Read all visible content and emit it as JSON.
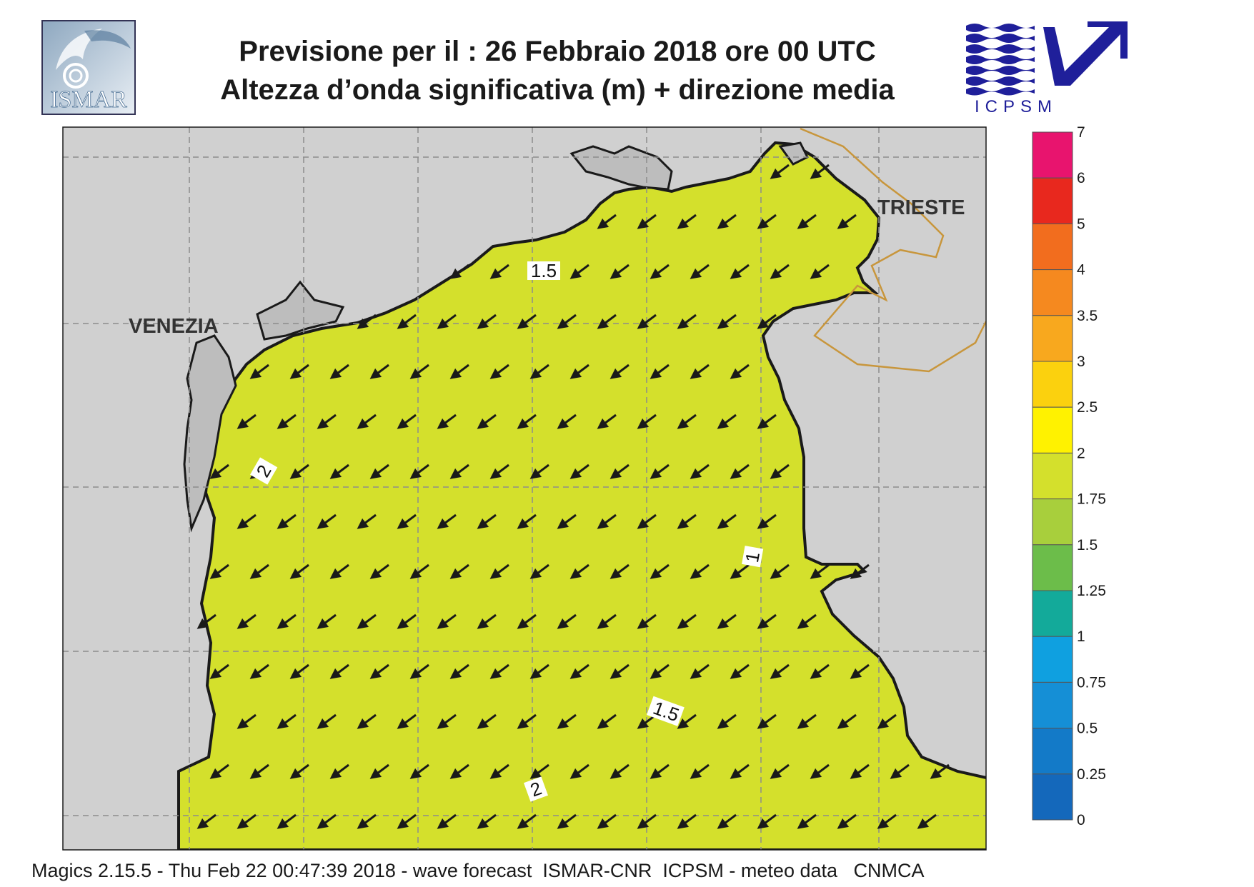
{
  "header": {
    "title_line1": "Previsione per il  :  26  Febbraio 2018   ore 00 UTC",
    "title_line2": "Altezza d’onda significativa (m) + direzione media"
  },
  "logos": {
    "left": {
      "text": "ISMAR",
      "color": "#4a6f94"
    },
    "right": {
      "text": "ICPSM",
      "color": "#1f1f9a"
    }
  },
  "map": {
    "cities": [
      "VENEZIA",
      "TRIESTE"
    ],
    "contour_labels": [
      "1.5",
      "2",
      "1",
      "1.5",
      "2"
    ],
    "land_color": "#d0d0d0",
    "coast_color": "#1a1a1a",
    "border_color": "#c8963c",
    "arrow_direction": "south-west"
  },
  "legend": {
    "labels": [
      "7",
      "6",
      "5",
      "4",
      "3.5",
      "3",
      "2.5",
      "2",
      "1.75",
      "1.5",
      "1.25",
      "1",
      "0.75",
      "0.5",
      "0.25",
      "0"
    ],
    "colors": [
      "#e8146e",
      "#e8281e",
      "#f26d1e",
      "#f5891f",
      "#f8a81e",
      "#fbd10e",
      "#fff200",
      "#d4e02c",
      "#a8cf3c",
      "#6cbd4a",
      "#13aa9a",
      "#0fa0e0",
      "#158fd6",
      "#137ac8",
      "#1468bb"
    ]
  },
  "footer": {
    "text": "Magics 2.15.5 - Thu Feb 22 00:47:39 2018 - wave forecast  ISMAR-CNR  ICPSM - meteo data   CNMCA"
  }
}
